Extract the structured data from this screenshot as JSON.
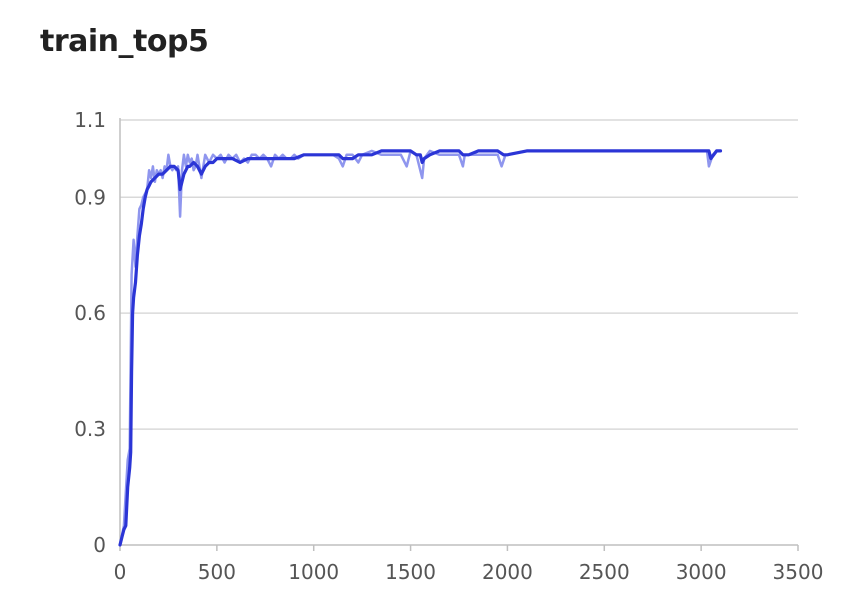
{
  "chart_data": {
    "type": "line",
    "title": "train_top5",
    "xlabel": "",
    "ylabel": "",
    "xlim": [
      0,
      3500
    ],
    "ylim": [
      0,
      1.1
    ],
    "x_ticks": [
      "0",
      "500",
      "1000",
      "1500",
      "2000",
      "2500",
      "3000",
      "3500"
    ],
    "y_ticks": [
      "0",
      "0.3",
      "0.6",
      "0.9",
      "1.1"
    ],
    "grid": true,
    "legend": "none",
    "colors": {
      "raw": "#8f96ee",
      "smoothed": "#2b35d6",
      "grid": "#d9d9d9"
    },
    "series": [
      {
        "style": "raw",
        "x": [
          0,
          20,
          40,
          50,
          60,
          70,
          80,
          90,
          100,
          110,
          120,
          130,
          140,
          150,
          160,
          170,
          180,
          190,
          200,
          210,
          220,
          230,
          240,
          250,
          260,
          270,
          280,
          290,
          300,
          310,
          320,
          330,
          340,
          350,
          360,
          370,
          380,
          390,
          400,
          420,
          440,
          460,
          480,
          500,
          520,
          540,
          560,
          580,
          600,
          620,
          640,
          660,
          680,
          700,
          720,
          740,
          760,
          780,
          800,
          820,
          840,
          860,
          880,
          900,
          920,
          950,
          1000,
          1050,
          1100,
          1130,
          1150,
          1170,
          1200,
          1230,
          1250,
          1300,
          1350,
          1400,
          1450,
          1480,
          1500,
          1530,
          1560,
          1570,
          1600,
          1650,
          1700,
          1750,
          1770,
          1780,
          1800,
          1850,
          1900,
          1950,
          1970,
          1990,
          2000,
          2100,
          2200,
          2300,
          2400,
          2500,
          2600,
          2700,
          2800,
          2900,
          3000,
          3030,
          3040,
          3060,
          3080,
          3100
        ],
        "values": [
          0.0,
          0.05,
          0.22,
          0.25,
          0.7,
          0.79,
          0.72,
          0.8,
          0.87,
          0.88,
          0.9,
          0.91,
          0.92,
          0.97,
          0.95,
          0.98,
          0.94,
          0.97,
          0.96,
          0.97,
          0.95,
          0.98,
          0.97,
          1.01,
          0.98,
          0.97,
          0.98,
          0.97,
          0.98,
          0.85,
          0.97,
          1.01,
          0.98,
          1.01,
          0.99,
          1.0,
          0.97,
          0.98,
          1.01,
          0.95,
          1.01,
          0.99,
          1.01,
          1.0,
          1.01,
          0.99,
          1.01,
          1.0,
          1.01,
          0.99,
          1.0,
          0.99,
          1.01,
          1.01,
          1.0,
          1.01,
          1.0,
          0.98,
          1.01,
          1.0,
          1.01,
          1.0,
          1.0,
          1.01,
          1.0,
          1.01,
          1.01,
          1.01,
          1.01,
          1.0,
          0.98,
          1.01,
          1.01,
          0.99,
          1.01,
          1.02,
          1.01,
          1.01,
          1.01,
          0.98,
          1.02,
          1.01,
          0.95,
          1.0,
          1.02,
          1.01,
          1.01,
          1.01,
          0.98,
          1.01,
          1.01,
          1.01,
          1.01,
          1.01,
          0.98,
          1.01,
          1.01,
          1.02,
          1.02,
          1.02,
          1.02,
          1.02,
          1.02,
          1.02,
          1.02,
          1.02,
          1.02,
          1.02,
          0.98,
          1.01,
          1.02,
          1.02
        ]
      },
      {
        "style": "smoothed",
        "x": [
          0,
          10,
          20,
          30,
          40,
          50,
          55,
          60,
          65,
          70,
          80,
          90,
          100,
          110,
          120,
          130,
          140,
          150,
          160,
          180,
          200,
          220,
          240,
          260,
          280,
          300,
          310,
          320,
          330,
          340,
          350,
          360,
          380,
          400,
          420,
          440,
          460,
          480,
          500,
          540,
          580,
          620,
          660,
          700,
          750,
          800,
          850,
          900,
          950,
          1000,
          1050,
          1100,
          1130,
          1150,
          1170,
          1200,
          1230,
          1250,
          1300,
          1350,
          1400,
          1450,
          1500,
          1530,
          1550,
          1560,
          1570,
          1600,
          1650,
          1700,
          1750,
          1770,
          1780,
          1800,
          1850,
          1900,
          1950,
          1980,
          2000,
          2100,
          2200,
          2300,
          2400,
          2500,
          2600,
          2700,
          2800,
          2900,
          3000,
          3040,
          3050,
          3080,
          3100
        ],
        "values": [
          0.0,
          0.02,
          0.04,
          0.05,
          0.15,
          0.2,
          0.24,
          0.45,
          0.6,
          0.64,
          0.68,
          0.75,
          0.8,
          0.83,
          0.87,
          0.9,
          0.92,
          0.93,
          0.94,
          0.95,
          0.96,
          0.96,
          0.97,
          0.98,
          0.98,
          0.97,
          0.92,
          0.94,
          0.96,
          0.97,
          0.98,
          0.98,
          0.99,
          0.98,
          0.96,
          0.98,
          0.99,
          0.99,
          1.0,
          1.0,
          1.0,
          0.99,
          1.0,
          1.0,
          1.0,
          1.0,
          1.0,
          1.0,
          1.01,
          1.01,
          1.01,
          1.01,
          1.01,
          1.0,
          1.0,
          1.0,
          1.01,
          1.01,
          1.01,
          1.02,
          1.02,
          1.02,
          1.02,
          1.01,
          1.01,
          0.99,
          1.0,
          1.01,
          1.02,
          1.02,
          1.02,
          1.01,
          1.01,
          1.01,
          1.02,
          1.02,
          1.02,
          1.01,
          1.01,
          1.02,
          1.02,
          1.02,
          1.02,
          1.02,
          1.02,
          1.02,
          1.02,
          1.02,
          1.02,
          1.02,
          1.0,
          1.02,
          1.02
        ]
      }
    ]
  }
}
